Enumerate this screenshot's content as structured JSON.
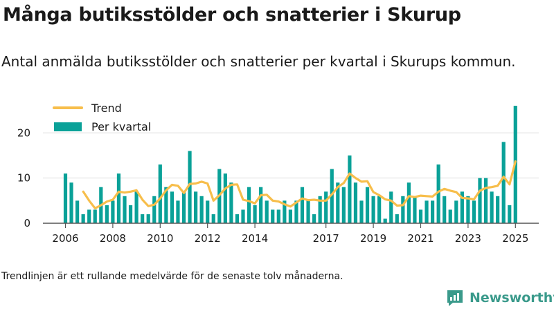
{
  "title": "Många butiksstölder och snatterier i Skurup",
  "subtitle": "Antal anmälda butiksstölder och snatterier per kvartal i Skurups kommun.",
  "footnote": "Trendlinjen är ett rullande medelvärde för de senaste tolv månaderna.",
  "brand": {
    "name": "Newsworthy",
    "color": "#3a9a8b",
    "icon": "newsworthy-logo-icon"
  },
  "colors": {
    "bar": "#0aa198",
    "trend": "#f7be4b",
    "grid": "#dddddd",
    "axis": "#555555"
  },
  "chart_data": {
    "type": "bar",
    "title": "",
    "xlabel": "",
    "ylabel": "",
    "ylim": [
      0,
      28
    ],
    "yticks": [
      0,
      10,
      20
    ],
    "x_ticks": [
      "2006",
      "2008",
      "2010",
      "2012",
      "2014",
      "2017",
      "2019",
      "2021",
      "2023",
      "2025"
    ],
    "grid": true,
    "legend": {
      "position": "top-left",
      "entries": [
        "Trend",
        "Per kvartal"
      ]
    },
    "x_start_quarter": "2006 Q1",
    "series": [
      {
        "name": "Per kvartal",
        "type": "bar",
        "values": [
          11,
          9,
          5,
          2,
          3,
          3,
          8,
          4,
          5,
          11,
          6,
          4,
          7,
          2,
          2,
          6,
          13,
          8,
          7,
          5,
          7,
          16,
          7,
          6,
          5,
          2,
          12,
          11,
          9,
          2,
          3,
          8,
          4,
          8,
          5,
          3,
          3,
          5,
          3,
          5,
          8,
          5,
          2,
          6,
          7,
          12,
          9,
          8,
          15,
          9,
          5,
          8,
          6,
          6,
          1,
          7,
          2,
          6,
          9,
          6,
          3,
          5,
          5,
          13,
          6,
          3,
          5,
          7,
          6,
          5,
          10,
          10,
          7,
          6,
          18,
          4,
          26
        ]
      },
      {
        "name": "Trend",
        "type": "line",
        "values": [
          null,
          null,
          null,
          7,
          5,
          3.3,
          4,
          4.8,
          5.2,
          7,
          6.8,
          7,
          7.3,
          5.2,
          3.8,
          4.1,
          5.5,
          7.3,
          8.5,
          8.3,
          6.7,
          8.7,
          8.8,
          9.2,
          8.8,
          5,
          6.2,
          7.7,
          8.5,
          8.6,
          5.2,
          4.9,
          4.4,
          6.2,
          6.3,
          5,
          4.8,
          4.2,
          3.7,
          4.6,
          5.5,
          5.1,
          5.2,
          5,
          5,
          6.4,
          8,
          8.9,
          11,
          10,
          9.2,
          9.3,
          6.9,
          6.2,
          5.3,
          5,
          3.9,
          4,
          6,
          5.8,
          6.1,
          6,
          5.9,
          7,
          7.6,
          7.2,
          6.9,
          5.6,
          5.5,
          5.3,
          7.2,
          7.8,
          8,
          8.3,
          10.3,
          8.6,
          13.7
        ]
      }
    ]
  }
}
